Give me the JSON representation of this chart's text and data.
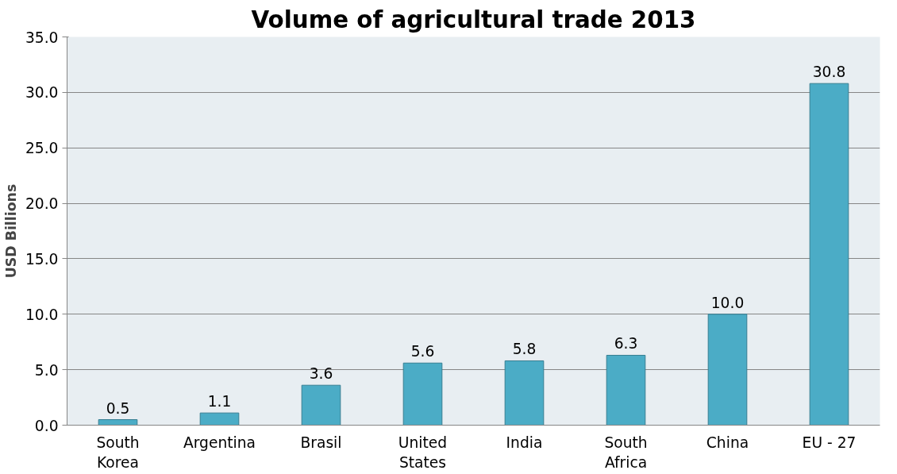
{
  "chart_data": {
    "type": "bar",
    "title": "Volume of agricultural trade 2013",
    "ylabel": "USD Billions",
    "categories": [
      "South Korea",
      "Argentina",
      "Brasil",
      "United States",
      "India",
      "South Africa",
      "China",
      "EU - 27"
    ],
    "values": [
      0.5,
      1.1,
      3.6,
      5.6,
      5.8,
      6.3,
      10.0,
      30.8
    ],
    "color": "#4bacc6",
    "ylim": [
      0,
      35
    ],
    "yticks": [
      {
        "value": 0,
        "label": "0.0"
      },
      {
        "value": 5,
        "label": "5.0"
      },
      {
        "value": 10,
        "label": "10.0"
      },
      {
        "value": 15,
        "label": "15.0"
      },
      {
        "value": 20,
        "label": "20.0"
      },
      {
        "value": 25,
        "label": "25.0"
      },
      {
        "value": 30,
        "label": "30.0"
      },
      {
        "value": 35,
        "label": "35.0"
      }
    ],
    "value_labels": [
      "0.5",
      "1.1",
      "3.6",
      "5.6",
      "5.8",
      "6.3",
      "10.0",
      "30.8"
    ],
    "grid": "y"
  }
}
